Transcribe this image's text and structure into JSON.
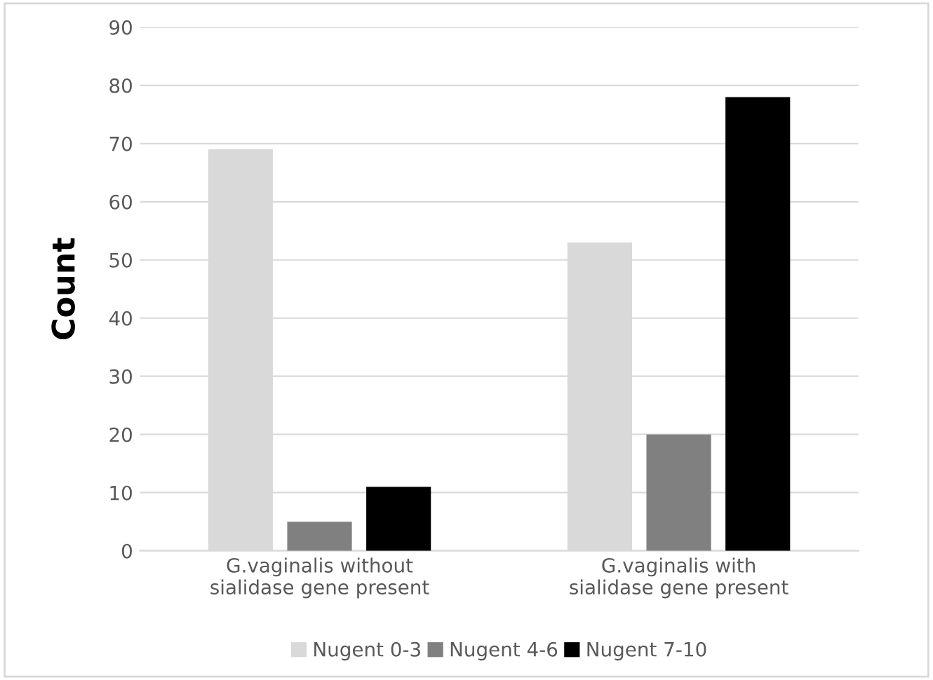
{
  "chart_data": {
    "type": "bar",
    "ylabel": "Count",
    "categories": [
      "G.vaginalis without sialidase gene present",
      "G.vaginalis with sialidase gene present"
    ],
    "series": [
      {
        "name": "Nugent 0-3",
        "color": "#d9d9d9",
        "values": [
          69,
          53
        ]
      },
      {
        "name": "Nugent 4-6",
        "color": "#808080",
        "values": [
          5,
          20
        ]
      },
      {
        "name": "Nugent 7-10",
        "color": "#000000",
        "values": [
          11,
          78
        ]
      }
    ],
    "ylim": [
      0,
      90
    ],
    "yticks": [
      0,
      10,
      20,
      30,
      40,
      50,
      60,
      70,
      80,
      90
    ],
    "grid": "y",
    "legend": "bottom"
  }
}
